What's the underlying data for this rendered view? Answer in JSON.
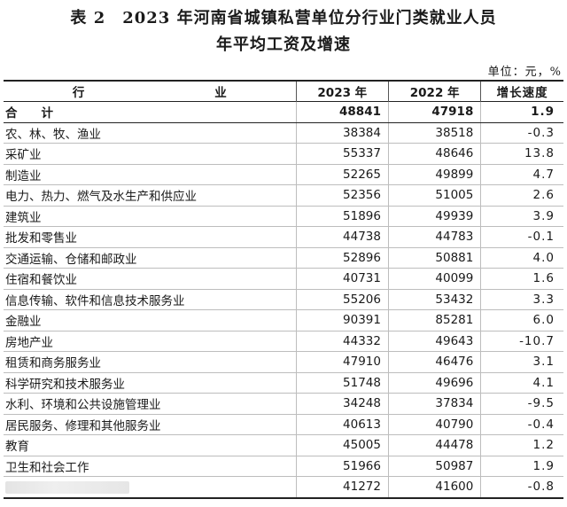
{
  "title": {
    "line1": "表 2　2023 年河南省城镇私营单位分行业门类就业人员",
    "line2": "年平均工资及增速"
  },
  "unit": "单位：元，%",
  "table": {
    "headers": [
      "行　　业",
      "2023 年",
      "2022 年",
      "增长速度"
    ],
    "rows": [
      {
        "industry": "合　　计",
        "y2023": "48841",
        "y2022": "47918",
        "growth": "1.9",
        "total": true
      },
      {
        "industry": "农、林、牧、渔业",
        "y2023": "38384",
        "y2022": "38518",
        "growth": "-0.3"
      },
      {
        "industry": "采矿业",
        "y2023": "55337",
        "y2022": "48646",
        "growth": "13.8"
      },
      {
        "industry": "制造业",
        "y2023": "52265",
        "y2022": "49899",
        "growth": "4.7"
      },
      {
        "industry": "电力、热力、燃气及水生产和供应业",
        "y2023": "52356",
        "y2022": "51005",
        "growth": "2.6"
      },
      {
        "industry": "建筑业",
        "y2023": "51896",
        "y2022": "49939",
        "growth": "3.9"
      },
      {
        "industry": "批发和零售业",
        "y2023": "44738",
        "y2022": "44783",
        "growth": "-0.1"
      },
      {
        "industry": "交通运输、仓储和邮政业",
        "y2023": "52896",
        "y2022": "50881",
        "growth": "4.0"
      },
      {
        "industry": "住宿和餐饮业",
        "y2023": "40731",
        "y2022": "40099",
        "growth": "1.6"
      },
      {
        "industry": "信息传输、软件和信息技术服务业",
        "y2023": "55206",
        "y2022": "53432",
        "growth": "3.3"
      },
      {
        "industry": "金融业",
        "y2023": "90391",
        "y2022": "85281",
        "growth": "6.0"
      },
      {
        "industry": "房地产业",
        "y2023": "44332",
        "y2022": "49643",
        "growth": "-10.7"
      },
      {
        "industry": "租赁和商务服务业",
        "y2023": "47910",
        "y2022": "46476",
        "growth": "3.1"
      },
      {
        "industry": "科学研究和技术服务业",
        "y2023": "51748",
        "y2022": "49696",
        "growth": "4.1"
      },
      {
        "industry": "水利、环境和公共设施管理业",
        "y2023": "34248",
        "y2022": "37834",
        "growth": "-9.5"
      },
      {
        "industry": "居民服务、修理和其他服务业",
        "y2023": "40613",
        "y2022": "40790",
        "growth": "-0.4"
      },
      {
        "industry": "教育",
        "y2023": "45005",
        "y2022": "44478",
        "growth": "1.2"
      },
      {
        "industry": "卫生和社会工作",
        "y2023": "51966",
        "y2022": "50987",
        "growth": "1.9"
      },
      {
        "industry": "",
        "y2023": "41272",
        "y2022": "41600",
        "growth": "-0.8",
        "blurred": true
      }
    ]
  }
}
